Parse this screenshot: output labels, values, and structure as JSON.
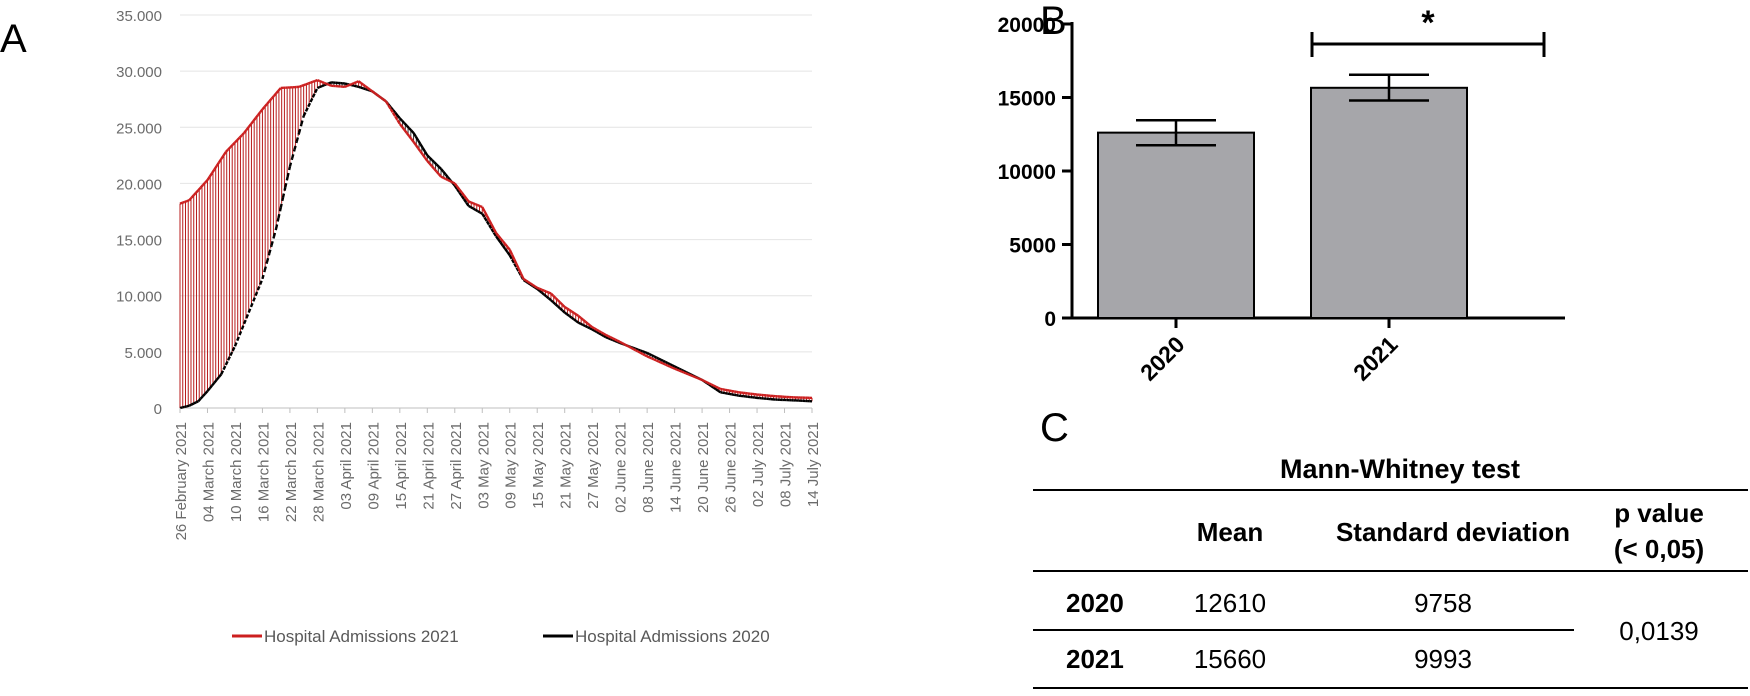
{
  "panels": {
    "a": "A",
    "b": "B",
    "c": "C"
  },
  "chart_data": [
    {
      "type": "line",
      "panel": "A",
      "y_ticks": [
        "35.000",
        "30.000",
        "25.000",
        "20.000",
        "15.000",
        "10.000",
        "5.000",
        "0"
      ],
      "ylim": [
        0,
        35000
      ],
      "grid": true,
      "legend_position": "bottom",
      "x_tick_labels": [
        "26 February 2021",
        "04 March 2021",
        "10 March 2021",
        "16 March 2021",
        "22 March 2021",
        "28 March 2021",
        "03 April 2021",
        "09 April 2021",
        "15 April 2021",
        "21 April 2021",
        "27 April 2021",
        "03 May 2021",
        "09 May 2021",
        "15 May 2021",
        "21 May 2021",
        "27 May 2021",
        "02 June 2021",
        "08 June 2021",
        "14 June 2021",
        "20 June 2021",
        "26 June 2021",
        "02 July 2021",
        "08 July 2021",
        "14 July 2021"
      ],
      "x_day_index": [
        0,
        6,
        12,
        18,
        24,
        30,
        36,
        42,
        48,
        54,
        60,
        66,
        72,
        78,
        84,
        90,
        96,
        102,
        108,
        114,
        120,
        126,
        132,
        138
      ],
      "series": [
        {
          "name": "Hospital Admissions 2021",
          "color": "#cc1f1f",
          "x_day_index": [
            0,
            2,
            6,
            10,
            14,
            18,
            22,
            26,
            30,
            33,
            36,
            39,
            42,
            45,
            48,
            51,
            54,
            57,
            60,
            63,
            66,
            69,
            72,
            75,
            78,
            81,
            84,
            87,
            90,
            93,
            96,
            102,
            108,
            114,
            118,
            122,
            126,
            130,
            134,
            138
          ],
          "values": [
            18200,
            18500,
            20300,
            22800,
            24500,
            26600,
            28500,
            28600,
            29200,
            28700,
            28600,
            29100,
            28200,
            27300,
            25300,
            23700,
            22000,
            20600,
            20000,
            18400,
            17900,
            15600,
            14100,
            11500,
            10700,
            10200,
            9000,
            8200,
            7200,
            6500,
            5900,
            4600,
            3500,
            2500,
            1700,
            1400,
            1200,
            1050,
            950,
            900
          ]
        },
        {
          "name": "Hospital Admissions 2020",
          "color": "#000000",
          "x_day_index": [
            0,
            2,
            4,
            6,
            9,
            12,
            15,
            18,
            21,
            24,
            27,
            30,
            33,
            36,
            39,
            42,
            45,
            48,
            51,
            54,
            57,
            60,
            63,
            66,
            69,
            72,
            75,
            78,
            81,
            84,
            87,
            90,
            93,
            96,
            102,
            108,
            114,
            118,
            122,
            126,
            130,
            134,
            138
          ],
          "values": [
            0,
            200,
            600,
            1500,
            3000,
            5500,
            8500,
            11500,
            16000,
            21500,
            26000,
            28500,
            29000,
            28900,
            28600,
            28200,
            27300,
            25800,
            24500,
            22500,
            21300,
            19800,
            18000,
            17300,
            15300,
            13600,
            11400,
            10600,
            9600,
            8500,
            7600,
            7000,
            6300,
            5800,
            4900,
            3700,
            2500,
            1400,
            1100,
            900,
            750,
            680,
            600
          ]
        }
      ]
    },
    {
      "type": "bar",
      "panel": "B",
      "categories": [
        "2020",
        "2021"
      ],
      "values": [
        12610,
        15660
      ],
      "error_low": [
        11750,
        14800
      ],
      "error_high": [
        13450,
        16550
      ],
      "y_ticks": [
        "20000",
        "15000",
        "10000",
        "5000",
        "0"
      ],
      "ylim": [
        0,
        20000
      ],
      "significance": "*",
      "bar_color": "#a6a6aa"
    }
  ],
  "table": {
    "title": "Mann-Whitney test",
    "headers": {
      "mean": "Mean",
      "sd": "Standard deviation",
      "p_line1": "p value",
      "p_line2": "(< 0,05)"
    },
    "rows": [
      {
        "year": "2020",
        "mean": "12610",
        "sd": "9758"
      },
      {
        "year": "2021",
        "mean": "15660",
        "sd": "9993"
      }
    ],
    "p_value": "0,0139"
  }
}
